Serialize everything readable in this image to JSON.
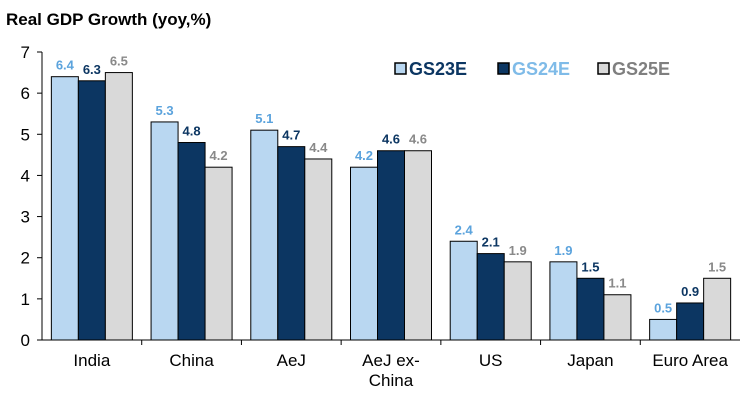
{
  "chart_data": {
    "type": "bar",
    "title": "Real GDP Growth (yoy,%)",
    "categories": [
      [
        "India"
      ],
      [
        "China"
      ],
      [
        "AeJ"
      ],
      [
        "AeJ ex-",
        "China"
      ],
      [
        "US"
      ],
      [
        "Japan"
      ],
      [
        "Euro Area"
      ]
    ],
    "series": [
      {
        "name": "GS23E",
        "values": [
          6.4,
          5.3,
          5.1,
          4.2,
          2.4,
          1.9,
          0.5
        ],
        "fill": "#b9d7f1",
        "label_color": "#5ba3dd"
      },
      {
        "name": "GS24E",
        "values": [
          6.3,
          4.8,
          4.7,
          4.6,
          2.1,
          1.5,
          0.9
        ],
        "fill": "#0c3662",
        "label_color": "#0c3662"
      },
      {
        "name": "GS25E",
        "values": [
          6.5,
          4.2,
          4.4,
          4.6,
          1.9,
          1.1,
          1.5
        ],
        "fill": "#d9d9d9",
        "label_color": "#898989"
      }
    ],
    "legend": {
      "placement": "top-right",
      "text_colors": [
        "#0c3662",
        "#7fbbe8",
        "#7f7f7f"
      ]
    },
    "ylim": [
      0,
      7
    ],
    "yticks": [
      0,
      1,
      2,
      3,
      4,
      5,
      6,
      7
    ],
    "grid": false
  }
}
